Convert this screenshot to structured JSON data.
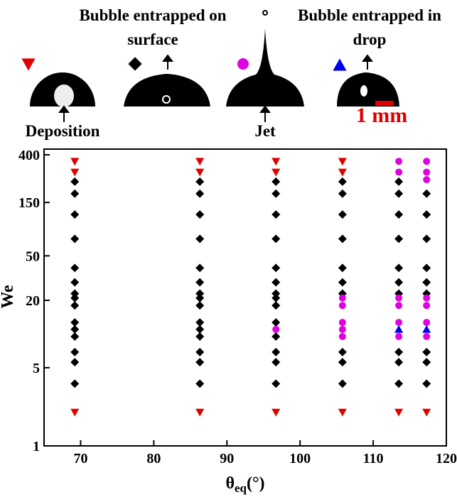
{
  "chart_data": {
    "type": "scatter",
    "x_label": "θ",
    "x_label_sub": "eq",
    "x_label_unit": "(°)",
    "y_label": "We",
    "scale_label": "1 mm",
    "scale_color": "#e00000",
    "xlim": [
      65,
      120
    ],
    "xticks": [
      70,
      80,
      90,
      100,
      110,
      120
    ],
    "ylim": [
      1,
      450
    ],
    "yticks": [
      1,
      5,
      20,
      50,
      150,
      400
    ],
    "log_y": true,
    "series": [
      {
        "name": "Deposition",
        "color": "#e00000",
        "marker": "triangle-down",
        "x": [
          69.2,
          69.2,
          69.2,
          86.3,
          86.3,
          86.3,
          96.7,
          96.7,
          96.7,
          105.8,
          105.8,
          105.8,
          113.5,
          117.3
        ],
        "values": [
          350,
          280,
          2,
          350,
          280,
          2,
          350,
          280,
          2,
          350,
          280,
          2,
          2,
          2
        ]
      },
      {
        "name": "Bubble entrapped on surface",
        "color": "#000000",
        "marker": "diamond",
        "x": [
          69.2,
          69.2,
          69.2,
          69.2,
          69.2,
          69.2,
          69.2,
          69.2,
          69.2,
          69.2,
          69.2,
          69.2,
          69.2,
          69.2,
          69.2,
          86.3,
          86.3,
          86.3,
          86.3,
          86.3,
          86.3,
          86.3,
          86.3,
          86.3,
          86.3,
          86.3,
          86.3,
          86.3,
          86.3,
          86.3,
          96.7,
          96.7,
          96.7,
          96.7,
          96.7,
          96.7,
          96.7,
          96.7,
          96.7,
          96.7,
          96.7,
          96.7,
          96.7,
          96.7,
          105.8,
          105.8,
          105.8,
          105.8,
          105.8,
          105.8,
          105.8,
          105.8,
          105.8,
          105.8,
          113.5,
          113.5,
          113.5,
          113.5,
          113.5,
          113.5,
          113.5,
          113.5,
          113.5,
          113.5,
          117.3,
          117.3,
          117.3,
          117.3,
          117.3,
          117.3,
          117.3,
          117.3,
          117.3
        ],
        "values": [
          230,
          180,
          117,
          71,
          39,
          29,
          23,
          21,
          18,
          12.7,
          11,
          9.5,
          6.9,
          5.6,
          3.6,
          230,
          180,
          117,
          71,
          39,
          29,
          23,
          21,
          18,
          12.7,
          11,
          9.5,
          6.9,
          5.6,
          3.6,
          230,
          180,
          117,
          71,
          39,
          29,
          23,
          21,
          18,
          12.7,
          9.5,
          6.9,
          5.6,
          3.6,
          230,
          180,
          117,
          71,
          39,
          29,
          23,
          6.9,
          5.6,
          3.6,
          230,
          180,
          117,
          71,
          39,
          29,
          23,
          6.9,
          5.6,
          3.6,
          180,
          117,
          71,
          39,
          29,
          23,
          6.9,
          5.6,
          3.6
        ]
      },
      {
        "name": "Jet",
        "color": "#e000e0",
        "marker": "circle",
        "x": [
          96.7,
          105.8,
          105.8,
          105.8,
          105.8,
          105.8,
          113.5,
          113.5,
          113.5,
          113.5,
          113.5,
          113.5,
          117.3,
          117.3,
          117.3,
          117.3,
          117.3,
          117.3,
          117.3
        ],
        "values": [
          11,
          21,
          18,
          12.7,
          11,
          9.5,
          350,
          280,
          21,
          18,
          12.7,
          9.5,
          350,
          280,
          240,
          21,
          18,
          12.7,
          9.5
        ]
      },
      {
        "name": "Bubble entrapped in drop",
        "color": "#0000ee",
        "marker": "triangle-up",
        "x": [
          113.5,
          117.3
        ],
        "values": [
          11,
          11
        ]
      }
    ]
  }
}
